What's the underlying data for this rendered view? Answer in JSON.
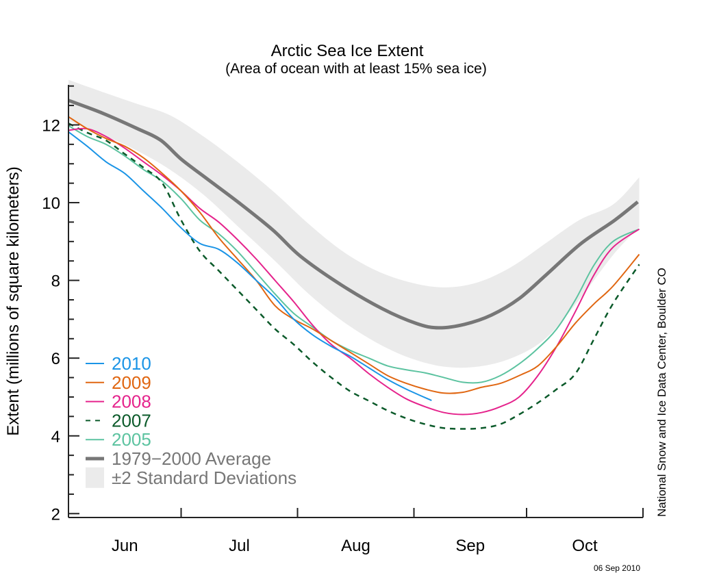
{
  "chart_data": {
    "type": "line",
    "title": "Arctic Sea Ice Extent",
    "subtitle": "(Area of ocean with at least 15% sea ice)",
    "xlabel": "",
    "ylabel": "Extent (millions of square kilometers)",
    "x_unit": "days since Jun 1",
    "xlim": [
      0,
      153
    ],
    "ylim": [
      1.9,
      13.1
    ],
    "y_ticks": [
      2,
      4,
      6,
      8,
      10,
      12
    ],
    "y_minor_step": 0.5,
    "month_boundaries": [
      0,
      30,
      61,
      92,
      122,
      153
    ],
    "month_labels": [
      "Jun",
      "Jul",
      "Aug",
      "Sep",
      "Oct"
    ],
    "legend_position": "bottom-left",
    "credit": "National Snow and Ice Data Center, Boulder CO",
    "date_stamp": "06 Sep 2010",
    "band": {
      "name": "±2 Standard Deviations",
      "color": "#ebebeb",
      "x": [
        0,
        9,
        18,
        27,
        36,
        45,
        55,
        64,
        73,
        82,
        91,
        100,
        109,
        118,
        127,
        136,
        145,
        152
      ],
      "upper": [
        13.16,
        12.85,
        12.55,
        12.25,
        11.7,
        11.05,
        10.25,
        9.45,
        8.75,
        8.25,
        7.95,
        7.82,
        7.95,
        8.35,
        8.95,
        9.55,
        9.95,
        10.65
      ],
      "lower": [
        12.1,
        11.75,
        11.35,
        10.85,
        10.2,
        9.4,
        8.5,
        7.65,
        6.95,
        6.4,
        6.0,
        5.78,
        5.78,
        6.0,
        6.5,
        7.5,
        8.65,
        9.37
      ]
    },
    "series": [
      {
        "name": "1979−2000 Average",
        "color": "#777777",
        "style": "thick",
        "x": [
          0,
          9.1,
          18.2,
          24.5,
          30,
          36.4,
          45.5,
          54.5,
          61.8,
          72.7,
          83.6,
          92.7,
          98.5,
          105.5,
          112.7,
          120,
          127.3,
          136.4,
          145.5,
          151.6
        ],
        "values": [
          12.63,
          12.3,
          11.91,
          11.61,
          11.12,
          10.65,
          9.99,
          9.29,
          8.62,
          7.88,
          7.27,
          6.89,
          6.78,
          6.87,
          7.11,
          7.53,
          8.15,
          8.94,
          9.55,
          10.02
        ]
      },
      {
        "name": "2010",
        "color": "#1a94e6",
        "style": "solid",
        "x": [
          0,
          5,
          10,
          15,
          20,
          25,
          30,
          35,
          40,
          45,
          50,
          55,
          60,
          65,
          70,
          75,
          80,
          85,
          90,
          96.7
        ],
        "values": [
          11.82,
          11.45,
          11.05,
          10.75,
          10.3,
          9.85,
          9.35,
          8.95,
          8.8,
          8.45,
          8.0,
          7.55,
          7.0,
          6.6,
          6.3,
          6.05,
          5.75,
          5.45,
          5.2,
          4.91
        ]
      },
      {
        "name": "2009",
        "color": "#e06611",
        "style": "solid",
        "x": [
          0,
          5,
          10,
          15,
          20,
          25,
          30,
          35,
          40,
          45,
          50,
          55,
          60,
          65,
          70,
          75,
          80,
          85,
          90,
          95,
          100,
          105,
          110,
          115,
          120,
          125,
          130,
          135,
          140,
          145,
          152
        ],
        "values": [
          12.21,
          11.9,
          11.65,
          11.45,
          11.15,
          10.75,
          10.3,
          9.75,
          9.1,
          8.55,
          8.0,
          7.35,
          7.0,
          6.75,
          6.45,
          6.15,
          5.85,
          5.55,
          5.35,
          5.2,
          5.1,
          5.12,
          5.25,
          5.35,
          5.55,
          5.8,
          6.3,
          6.9,
          7.4,
          7.85,
          8.67
        ]
      },
      {
        "name": "2008",
        "color": "#e5238c",
        "style": "solid",
        "x": [
          0,
          5,
          10,
          15,
          20,
          25,
          30,
          35,
          40,
          45,
          50,
          55,
          60,
          65,
          70,
          75,
          80,
          85,
          90,
          95,
          100,
          105,
          110,
          115,
          120,
          125,
          130,
          135,
          140,
          145,
          152
        ],
        "values": [
          11.86,
          11.9,
          11.7,
          11.4,
          11.05,
          10.7,
          10.3,
          9.85,
          9.5,
          9.05,
          8.55,
          8.0,
          7.45,
          6.85,
          6.35,
          6.0,
          5.6,
          5.25,
          4.95,
          4.75,
          4.6,
          4.55,
          4.6,
          4.75,
          5.0,
          5.55,
          6.3,
          7.2,
          8.15,
          8.85,
          9.32
        ]
      },
      {
        "name": "2007",
        "color": "#0b5a2a",
        "style": "dashed",
        "x": [
          0,
          5,
          10,
          15,
          20,
          25,
          30,
          35,
          40,
          45,
          50,
          55,
          60,
          65,
          70,
          75,
          80,
          85,
          90,
          95,
          100,
          105,
          110,
          115,
          120,
          125,
          130,
          135,
          140,
          145,
          152
        ],
        "values": [
          12.04,
          11.8,
          11.6,
          11.25,
          10.9,
          10.5,
          9.55,
          8.75,
          8.25,
          7.75,
          7.25,
          6.75,
          6.35,
          5.9,
          5.5,
          5.15,
          4.9,
          4.65,
          4.45,
          4.3,
          4.2,
          4.18,
          4.2,
          4.3,
          4.55,
          4.85,
          5.2,
          5.6,
          6.5,
          7.4,
          8.41
        ]
      },
      {
        "name": "2005",
        "color": "#5cc3a0",
        "style": "solid",
        "x": [
          0,
          5,
          10,
          15,
          20,
          25,
          30,
          35,
          40,
          45,
          50,
          55,
          60,
          65,
          70,
          75,
          80,
          85,
          90,
          95,
          100,
          105,
          110,
          115,
          120,
          125,
          130,
          135,
          140,
          145,
          152
        ],
        "values": [
          11.98,
          11.7,
          11.5,
          11.2,
          10.85,
          10.55,
          10.1,
          9.55,
          9.2,
          8.75,
          8.2,
          7.65,
          7.15,
          6.8,
          6.45,
          6.2,
          6.0,
          5.8,
          5.7,
          5.62,
          5.5,
          5.38,
          5.38,
          5.55,
          5.85,
          6.25,
          6.75,
          7.5,
          8.4,
          9.0,
          9.32
        ]
      }
    ]
  }
}
